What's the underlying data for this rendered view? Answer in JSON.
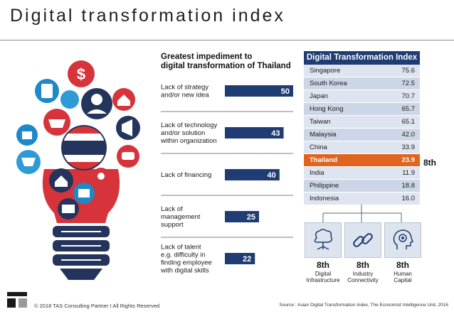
{
  "title": "Digital transformation index",
  "bar_chart": {
    "heading": [
      "Greatest impediment to",
      "digital transformation of Thailand"
    ]
  },
  "chart_data": [
    {
      "type": "bar",
      "orientation": "horizontal",
      "title": "Greatest impediment to digital transformation of Thailand",
      "categories": [
        [
          "Lack of strategy",
          "and/or new idea"
        ],
        [
          "Lack of technology",
          "and/or solution",
          "within organization"
        ],
        [
          "Lack of financing"
        ],
        [
          "Lack of",
          "management",
          "support"
        ],
        [
          "Lack of talent",
          "e.g. difficulty in",
          "finding employee",
          "with digital skills"
        ]
      ],
      "values": [
        50,
        43,
        40,
        25,
        22
      ],
      "xlim": [
        0,
        80
      ],
      "bar_color": "#1f3c73",
      "label_color": "#ffffff"
    },
    {
      "type": "table",
      "title": "Digital Transformation Index",
      "rows": [
        {
          "country": "Singapore",
          "score": "75.6"
        },
        {
          "country": "South Korea",
          "score": "72.5"
        },
        {
          "country": "Japan",
          "score": "70.7"
        },
        {
          "country": "Hong Kong",
          "score": "65.7"
        },
        {
          "country": "Taiwan",
          "score": "65.1"
        },
        {
          "country": "Malaysia",
          "score": "42.0"
        },
        {
          "country": "China",
          "score": "33.9"
        },
        {
          "country": "Thailand",
          "score": "23.9"
        },
        {
          "country": "India",
          "score": "11.9"
        },
        {
          "country": "Philippine",
          "score": "18.8"
        },
        {
          "country": "Indonesia",
          "score": "16.0"
        }
      ],
      "highlight_index": 7,
      "highlight_color": "#e0641e",
      "header_color": "#1f3c73"
    }
  ],
  "thailand_rank": "8th",
  "pillars": [
    {
      "rank": "8th",
      "label": [
        "Digital",
        "Infrastructure"
      ],
      "icon": "tree-circuit-icon"
    },
    {
      "rank": "8th",
      "label": [
        "Industry",
        "Connectivity"
      ],
      "icon": "chain-link-icon"
    },
    {
      "rank": "8th",
      "label": [
        "Human",
        "Capital"
      ],
      "icon": "head-gear-icon"
    }
  ],
  "footer": {
    "copyright": "© 2018 TAS Consulting Partner  I  All Rights Reserved",
    "source": "Source : Asian Digital Transformation Index, The Economist Intelligence Unit, 2016"
  },
  "colors": {
    "navy": "#1f3c73",
    "orange": "#e0641e",
    "bulb_blue": "#1e88c8",
    "bulb_red": "#d6343a",
    "bulb_navy": "#24345c"
  }
}
